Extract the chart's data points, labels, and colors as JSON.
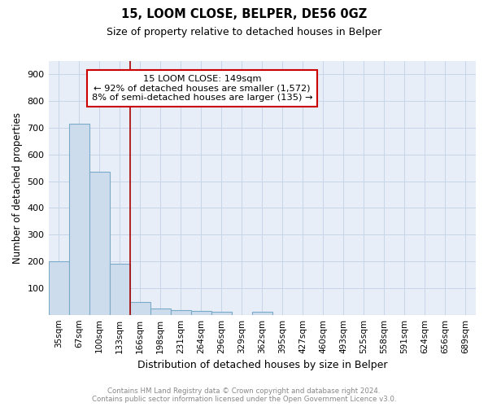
{
  "title1": "15, LOOM CLOSE, BELPER, DE56 0GZ",
  "title2": "Size of property relative to detached houses in Belper",
  "xlabel": "Distribution of detached houses by size in Belper",
  "ylabel": "Number of detached properties",
  "categories": [
    "35sqm",
    "67sqm",
    "100sqm",
    "133sqm",
    "166sqm",
    "198sqm",
    "231sqm",
    "264sqm",
    "296sqm",
    "329sqm",
    "362sqm",
    "395sqm",
    "427sqm",
    "460sqm",
    "493sqm",
    "525sqm",
    "558sqm",
    "591sqm",
    "624sqm",
    "656sqm",
    "689sqm"
  ],
  "values": [
    200,
    715,
    535,
    192,
    47,
    22,
    16,
    13,
    10,
    0,
    10,
    0,
    0,
    0,
    0,
    0,
    0,
    0,
    0,
    0,
    0
  ],
  "bar_color": "#ccdcec",
  "bar_edge_color": "#7aaac8",
  "bar_linewidth": 0.8,
  "red_line_x": 3.5,
  "annotation_line1": "15 LOOM CLOSE: 149sqm",
  "annotation_line2": "← 92% of detached houses are smaller (1,572)",
  "annotation_line3": "8% of semi-detached houses are larger (135) →",
  "annotation_box_color": "#ffffff",
  "annotation_box_edge": "#cc0000",
  "red_line_color": "#aa0000",
  "grid_color": "#c8d4e8",
  "bg_color": "#e8eef8",
  "ylim": [
    0,
    950
  ],
  "yticks": [
    0,
    100,
    200,
    300,
    400,
    500,
    600,
    700,
    800,
    900
  ],
  "footer1": "Contains HM Land Registry data © Crown copyright and database right 2024.",
  "footer2": "Contains public sector information licensed under the Open Government Licence v3.0."
}
